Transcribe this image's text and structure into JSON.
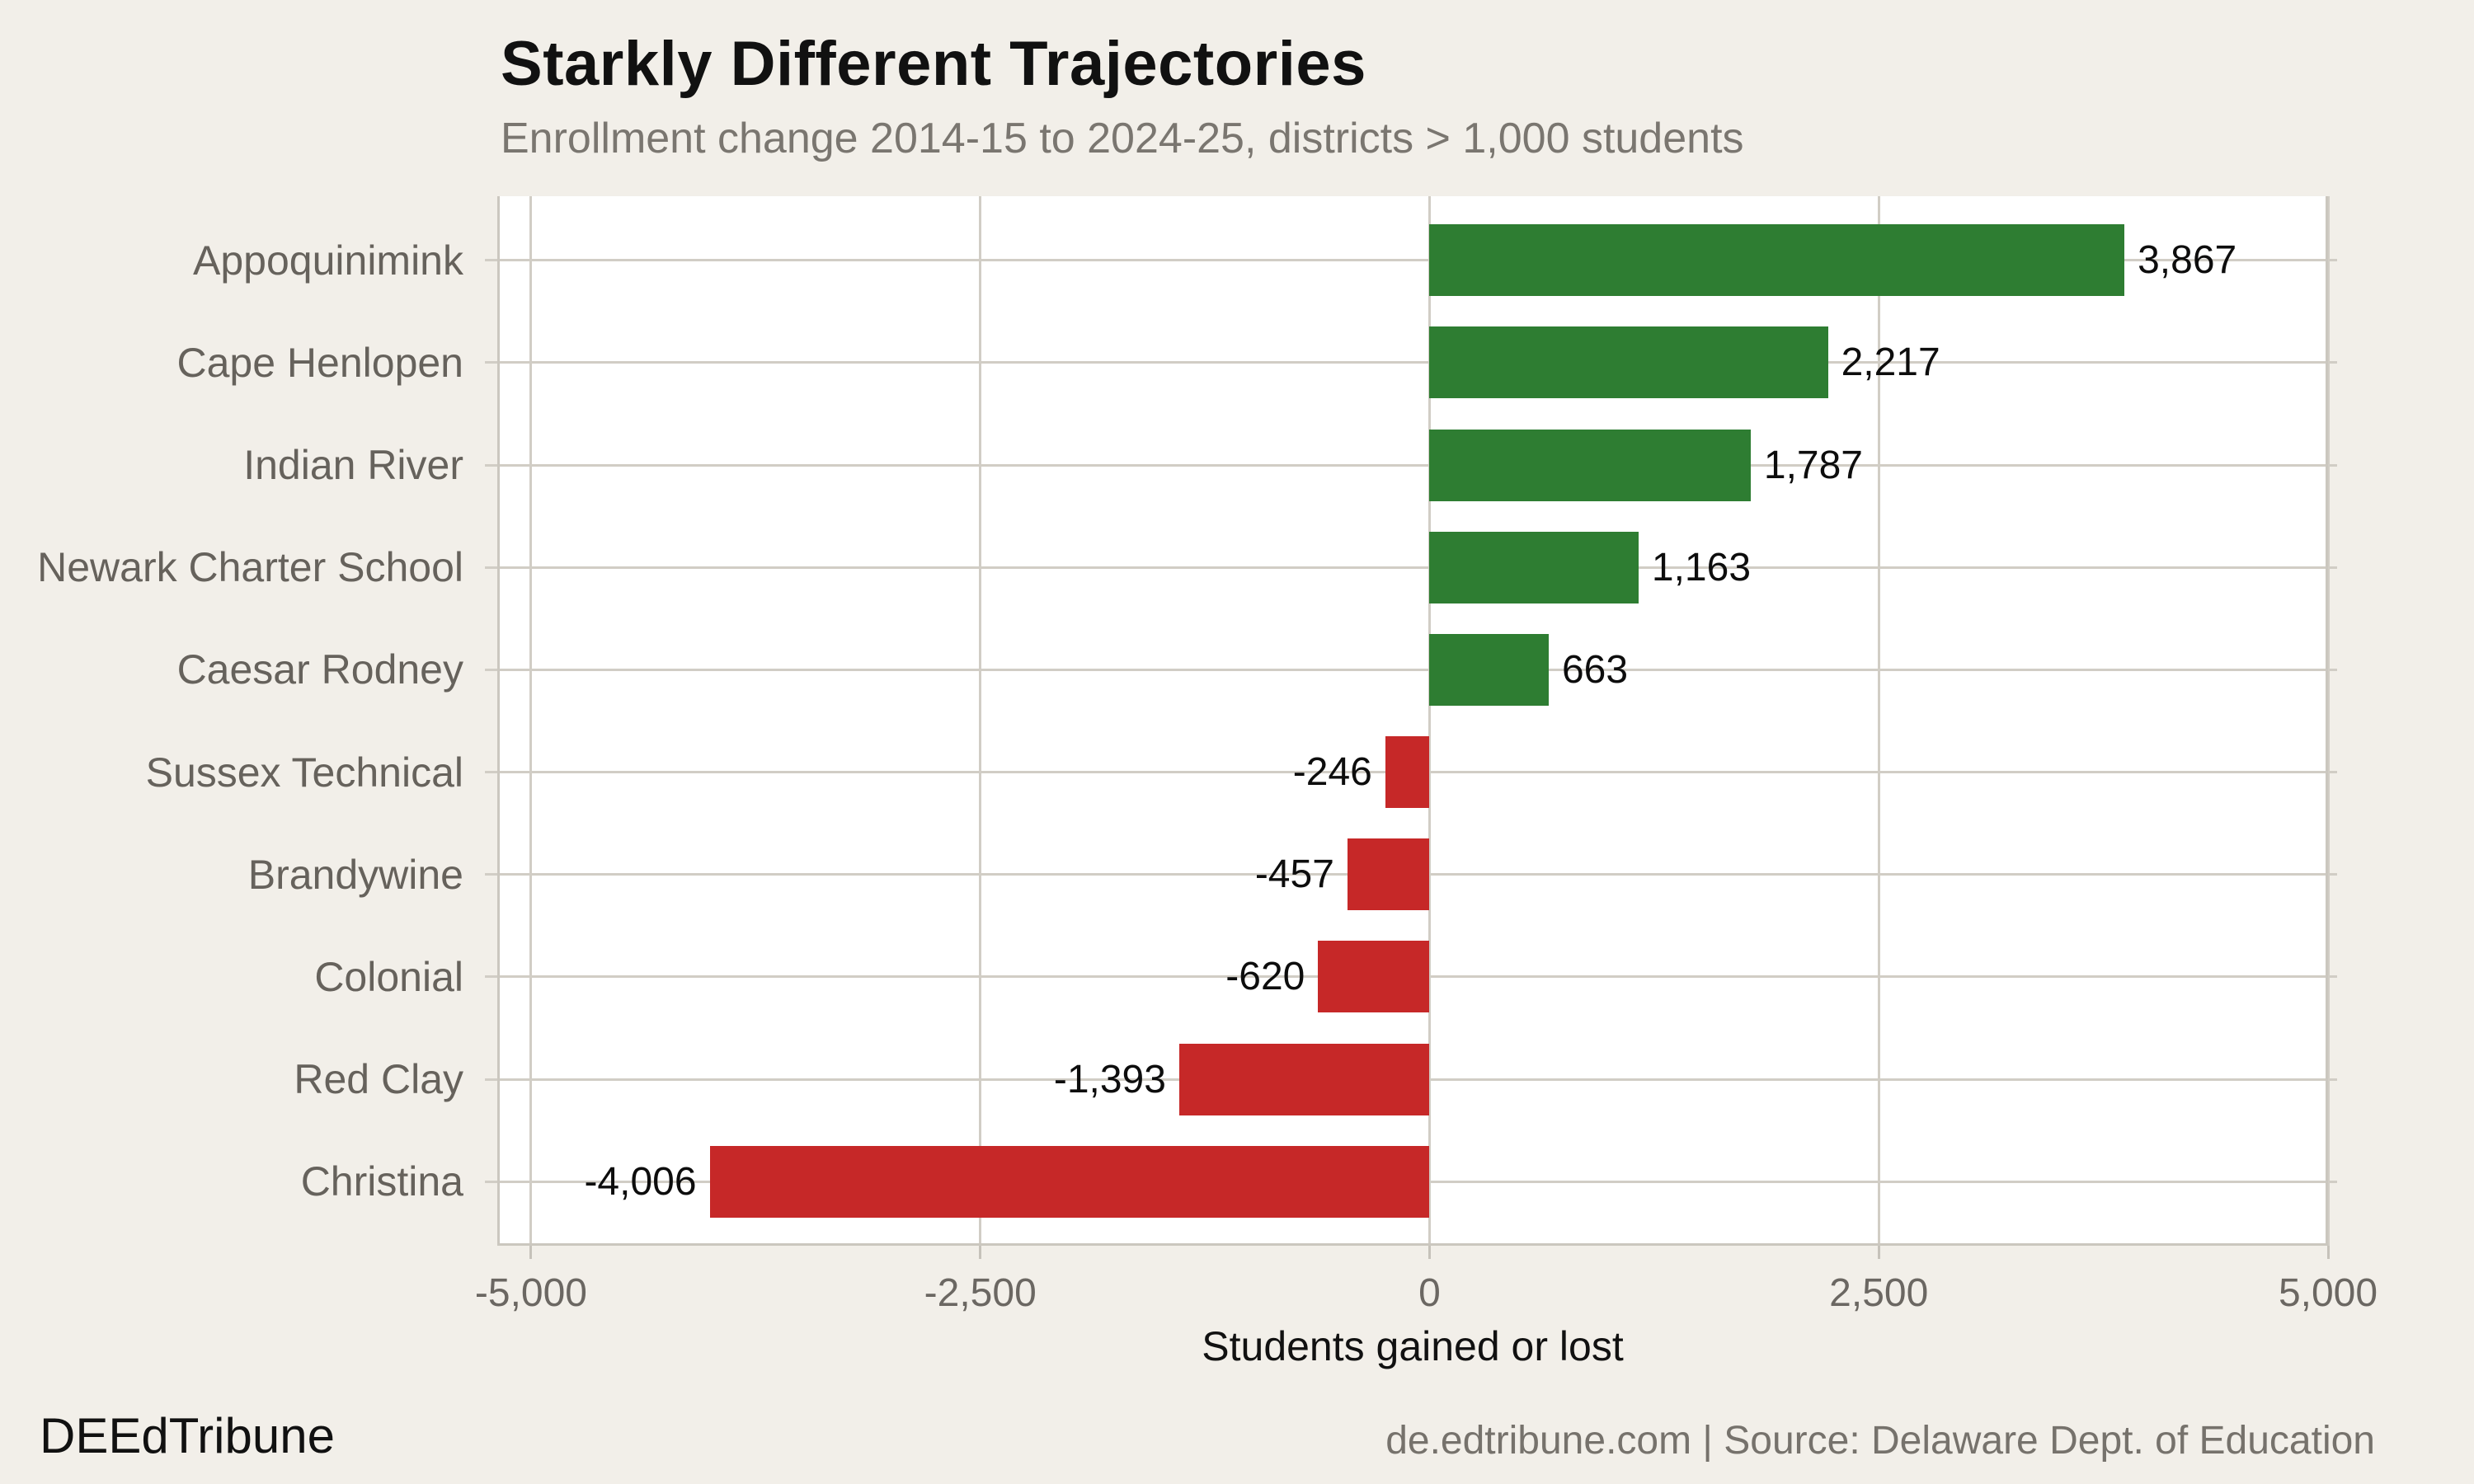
{
  "header": {
    "title": "Starkly Different Trajectories",
    "subtitle": "Enrollment change 2014-15 to 2024-25, districts > 1,000 students"
  },
  "footer": {
    "left": "DEEdTribune",
    "right": "de.edtribune.com | Source: Delaware Dept. of Education"
  },
  "chart_data": {
    "type": "bar",
    "orientation": "horizontal",
    "title": "Starkly Different Trajectories",
    "subtitle": "Enrollment change 2014-15 to 2024-25, districts > 1,000 students",
    "categories": [
      "Appoquinimink",
      "Cape Henlopen",
      "Indian River",
      "Newark Charter School",
      "Caesar Rodney",
      "Sussex Technical",
      "Brandywine",
      "Colonial",
      "Red Clay",
      "Christina"
    ],
    "values": [
      3867,
      2217,
      1787,
      1163,
      663,
      -246,
      -457,
      -620,
      -1393,
      -4006
    ],
    "value_labels": [
      "3,867",
      "2,217",
      "1,787",
      "1,163",
      "663",
      "-246",
      "-457",
      "-620",
      "-1,393",
      "-4,006"
    ],
    "xlabel": "Students gained or lost",
    "ylabel": "",
    "xlim": [
      -5188,
      5000
    ],
    "xticks": [
      -5000,
      -2500,
      0,
      2500,
      5000
    ],
    "xtick_labels": [
      "-5,000",
      "-2,500",
      "0",
      "2,500",
      "5,000"
    ],
    "grid": true,
    "legend": false,
    "colors": {
      "positive": "#2e7d32",
      "negative": "#c62828",
      "background": "#f2efe9",
      "panel": "#ffffff",
      "gridline": "#d1cdc5",
      "category_label": "#66625c",
      "value_label": "#0d0d0d",
      "tick_label": "#6b6762",
      "title": "#111111",
      "subtitle": "#7a7670"
    }
  }
}
